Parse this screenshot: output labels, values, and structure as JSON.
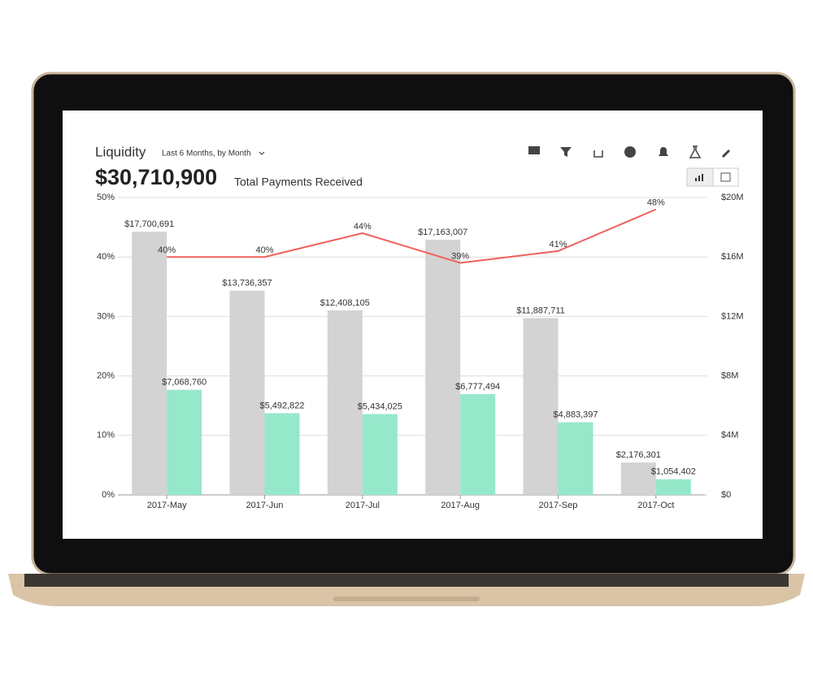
{
  "header": {
    "title": "Liquidity",
    "period": "Last 6 Months, by Month",
    "total": "$30,710,900",
    "total_label": "Total Payments Received"
  },
  "chart_data": {
    "type": "bar-line",
    "categories": [
      "2017-May",
      "2017-Jun",
      "2017-Jul",
      "2017-Aug",
      "2017-Sep",
      "2017-Oct"
    ],
    "series": [
      {
        "type": "bar",
        "axis": "y2",
        "color": "#d3d3d3",
        "values": [
          17700691,
          13736357,
          12408105,
          17163007,
          11887711,
          2176301
        ],
        "value_labels": [
          "$17,700,691",
          "$13,736,357",
          "$12,408,105",
          "$17,163,007",
          "$11,887,711",
          "$2,176,301"
        ]
      },
      {
        "type": "bar",
        "axis": "y2",
        "color": "#96e8cb",
        "values": [
          7068760,
          5492822,
          5434025,
          6777494,
          4883397,
          1054402
        ],
        "value_labels": [
          "$7,068,760",
          "$5,492,822",
          "$5,434,025",
          "$6,777,494",
          "$4,883,397",
          "$1,054,402"
        ]
      },
      {
        "type": "line",
        "color": "#f0605a",
        "values": [
          40,
          40,
          44,
          39,
          41,
          48
        ],
        "value_labels": [
          "40%",
          "40%",
          "44%",
          "39%",
          "41%",
          "48%"
        ]
      }
    ],
    "ylim": [
      0,
      50
    ],
    "yticks": [
      {
        "value": 0,
        "label": "0%"
      },
      {
        "value": 10,
        "label": "10%"
      },
      {
        "value": 20,
        "label": "20%"
      },
      {
        "value": 30,
        "label": "30%"
      },
      {
        "value": 40,
        "label": "40%"
      },
      {
        "value": 50,
        "label": "50%"
      }
    ],
    "y2lim": [
      0,
      20000000
    ],
    "y2ticks": [
      {
        "value": 0,
        "label": "$0"
      },
      {
        "value": 4000000,
        "label": "$4M"
      },
      {
        "value": 8000000,
        "label": "$8M"
      },
      {
        "value": 12000000,
        "label": "$12M"
      },
      {
        "value": 16000000,
        "label": "$16M"
      },
      {
        "value": 20000000,
        "label": "$20M"
      }
    ],
    "grid": true
  }
}
